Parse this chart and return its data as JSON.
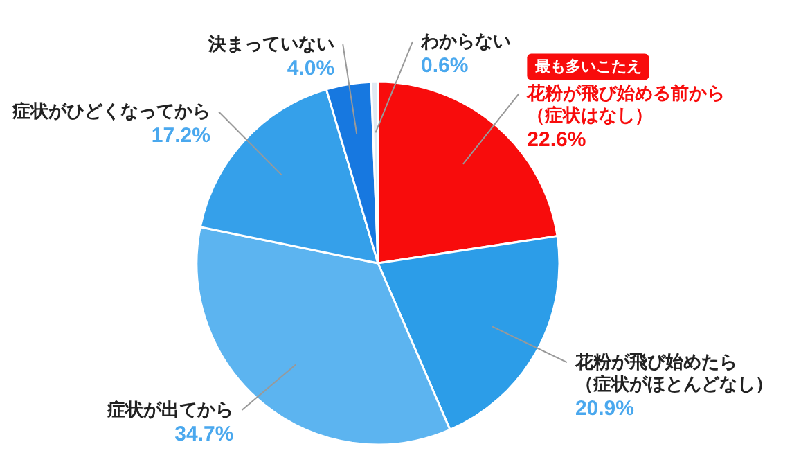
{
  "chart_data": {
    "type": "pie",
    "categories": [
      "花粉が飛び始める前から（症状はなし）",
      "花粉が飛び始めたら（症状がほとんどなし）",
      "症状が出てから",
      "症状がひどくなってから",
      "決まっていない",
      "わからない"
    ],
    "values": [
      22.6,
      20.9,
      34.7,
      17.2,
      4.0,
      0.6
    ],
    "value_labels": [
      "22.6%",
      "20.9%",
      "34.7%",
      "17.2%",
      "4.0%",
      "0.6%"
    ],
    "colors": [
      "#f80c0c",
      "#2c9de8",
      "#5cb4f0",
      "#35a0ea",
      "#1778e0",
      "#dfe9f3"
    ],
    "annotations": [
      "最も多いこたえ"
    ]
  }
}
